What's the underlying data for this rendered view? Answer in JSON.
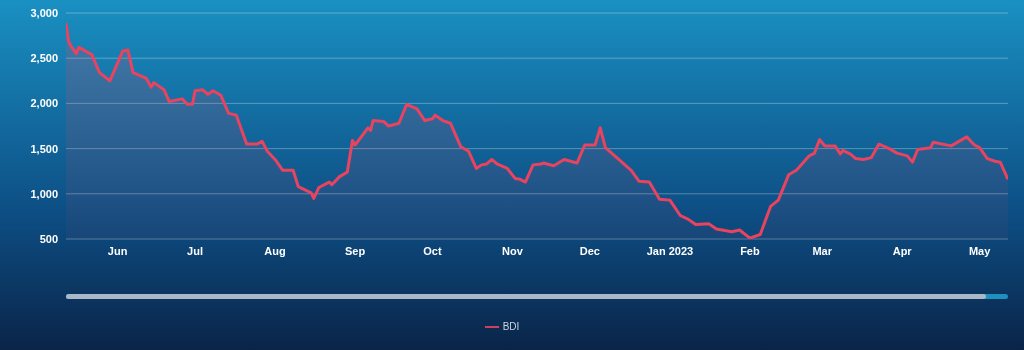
{
  "chart_data": {
    "type": "area",
    "x": [
      "2022-05-12",
      "2022-05-13",
      "2022-05-14",
      "2022-05-16",
      "2022-05-17",
      "2022-05-22",
      "2022-05-25",
      "2022-05-29",
      "2022-06-03",
      "2022-06-05",
      "2022-06-07",
      "2022-06-12",
      "2022-06-14",
      "2022-06-15",
      "2022-06-19",
      "2022-06-21",
      "2022-06-26",
      "2022-06-28",
      "2022-06-30",
      "2022-07-01",
      "2022-07-04",
      "2022-07-06",
      "2022-07-08",
      "2022-07-11",
      "2022-07-14",
      "2022-07-17",
      "2022-07-21",
      "2022-07-25",
      "2022-07-27",
      "2022-07-29",
      "2022-08-01",
      "2022-08-04",
      "2022-08-08",
      "2022-08-10",
      "2022-08-15",
      "2022-08-16",
      "2022-08-18",
      "2022-08-22",
      "2022-08-23",
      "2022-08-26",
      "2022-08-29",
      "2022-08-31",
      "2022-09-01",
      "2022-09-06",
      "2022-09-07",
      "2022-09-08",
      "2022-09-12",
      "2022-09-14",
      "2022-09-18",
      "2022-09-21",
      "2022-09-25",
      "2022-09-28",
      "2022-10-01",
      "2022-10-02",
      "2022-10-05",
      "2022-10-08",
      "2022-10-12",
      "2022-10-15",
      "2022-10-18",
      "2022-10-20",
      "2022-10-22",
      "2022-10-24",
      "2022-10-26",
      "2022-10-30",
      "2022-11-02",
      "2022-11-04",
      "2022-11-06",
      "2022-11-09",
      "2022-11-12",
      "2022-11-13",
      "2022-11-17",
      "2022-11-21",
      "2022-11-26",
      "2022-11-29",
      "2022-12-03",
      "2022-12-05",
      "2022-12-07",
      "2022-12-17",
      "2022-12-20",
      "2022-12-24",
      "2022-12-28",
      "2023-01-01",
      "2023-01-05",
      "2023-01-08",
      "2023-01-11",
      "2023-01-16",
      "2023-01-19",
      "2023-01-25",
      "2023-01-28",
      "2023-02-01",
      "2023-02-05",
      "2023-02-09",
      "2023-02-12",
      "2023-02-16",
      "2023-02-19",
      "2023-02-24",
      "2023-02-26",
      "2023-02-28",
      "2023-03-02",
      "2023-03-06",
      "2023-03-08",
      "2023-03-09",
      "2023-03-12",
      "2023-03-14",
      "2023-03-17",
      "2023-03-20",
      "2023-03-23",
      "2023-03-27",
      "2023-03-30",
      "2023-04-03",
      "2023-04-05",
      "2023-04-07",
      "2023-04-12",
      "2023-04-13",
      "2023-04-20",
      "2023-04-26",
      "2023-04-29",
      "2023-05-01",
      "2023-05-04",
      "2023-05-07",
      "2023-05-09",
      "2023-05-12"
    ],
    "series": [
      {
        "name": "BDI",
        "color": "#e8435f",
        "values": [
          2890,
          2690,
          2630,
          2550,
          2620,
          2540,
          2340,
          2250,
          2580,
          2590,
          2340,
          2280,
          2180,
          2230,
          2150,
          2020,
          2050,
          1990,
          1990,
          2140,
          2150,
          2100,
          2140,
          2090,
          1890,
          1870,
          1550,
          1550,
          1580,
          1470,
          1380,
          1260,
          1260,
          1080,
          1010,
          950,
          1070,
          1130,
          1100,
          1190,
          1240,
          1590,
          1540,
          1730,
          1700,
          1810,
          1800,
          1750,
          1780,
          1990,
          1940,
          1810,
          1830,
          1870,
          1810,
          1780,
          1520,
          1470,
          1280,
          1320,
          1330,
          1380,
          1330,
          1280,
          1170,
          1160,
          1130,
          1320,
          1330,
          1340,
          1310,
          1380,
          1340,
          1540,
          1540,
          1730,
          1510,
          1260,
          1140,
          1130,
          940,
          930,
          760,
          720,
          660,
          670,
          610,
          580,
          600,
          510,
          550,
          860,
          930,
          1210,
          1260,
          1420,
          1450,
          1600,
          1530,
          1530,
          1440,
          1480,
          1440,
          1390,
          1380,
          1400,
          1550,
          1500,
          1450,
          1420,
          1350,
          1490,
          1510,
          1570,
          1530,
          1630,
          1540,
          1510,
          1390,
          1360,
          1350,
          1160
        ]
      }
    ],
    "xlim": [
      "2022-05-12",
      "2023-05-12"
    ],
    "xticks": [
      {
        "value": "2022-06-01",
        "label": "Jun"
      },
      {
        "value": "2022-07-01",
        "label": "Jul"
      },
      {
        "value": "2022-08-01",
        "label": "Aug"
      },
      {
        "value": "2022-09-01",
        "label": "Sep"
      },
      {
        "value": "2022-10-01",
        "label": "Oct"
      },
      {
        "value": "2022-11-01",
        "label": "Nov"
      },
      {
        "value": "2022-12-01",
        "label": "Dec"
      },
      {
        "value": "2023-01-01",
        "label": "Jan 2023"
      },
      {
        "value": "2023-02-01",
        "label": "Feb"
      },
      {
        "value": "2023-03-01",
        "label": "Mar"
      },
      {
        "value": "2023-04-01",
        "label": "Apr"
      },
      {
        "value": "2023-05-01",
        "label": "May"
      }
    ],
    "ylim": [
      500,
      3000
    ],
    "yticks": [
      {
        "value": 500,
        "label": "500"
      },
      {
        "value": 1000,
        "label": "1,000"
      },
      {
        "value": 1500,
        "label": "1,500"
      },
      {
        "value": 2000,
        "label": "2,000"
      },
      {
        "value": 2500,
        "label": "2,500"
      },
      {
        "value": 3000,
        "label": "3,000"
      }
    ],
    "grid": "y",
    "legend": "bottom"
  }
}
